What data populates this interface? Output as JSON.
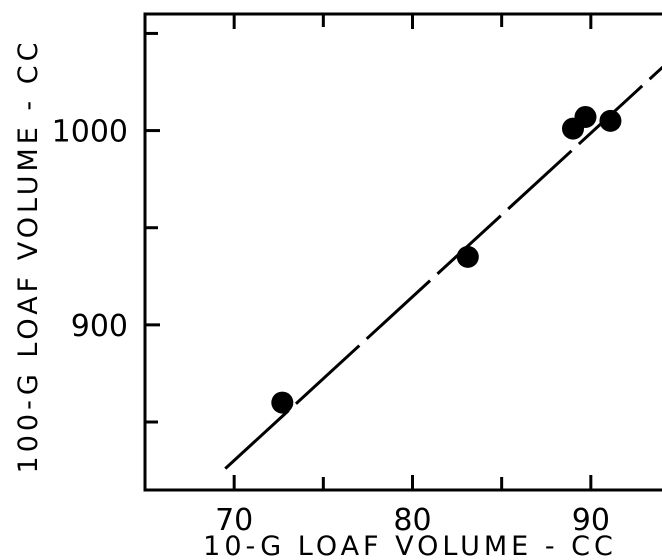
{
  "chart_data": {
    "type": "scatter",
    "title": "",
    "xlabel": "10-G LOAF VOLUME - CC",
    "ylabel": "100-G LOAF VOLUME - CC",
    "xlim": [
      65,
      95
    ],
    "ylim": [
      815,
      1060
    ],
    "x_major_ticks": [
      70,
      80,
      90
    ],
    "x_minor_ticks": [
      75,
      85
    ],
    "y_major_ticks": [
      900,
      1000
    ],
    "y_minor_ticks": [
      850,
      950,
      1050
    ],
    "x_tick_labels": [
      "70",
      "80",
      "90"
    ],
    "y_tick_labels": [
      "900",
      "1000"
    ],
    "grid": false,
    "series": [
      {
        "points": [
          {
            "x": 72.7,
            "y": 860
          },
          {
            "x": 83.1,
            "y": 935
          },
          {
            "x": 89.0,
            "y": 1001
          },
          {
            "x": 89.7,
            "y": 1007
          },
          {
            "x": 91.1,
            "y": 1005
          }
        ]
      }
    ],
    "fit_line": {
      "style": "dashed",
      "points": [
        {
          "x": 69.5,
          "y": 826
        },
        {
          "x": 94.9,
          "y": 1040
        }
      ]
    },
    "colors": {
      "ink": "#000000",
      "background": "#ffffff"
    }
  }
}
